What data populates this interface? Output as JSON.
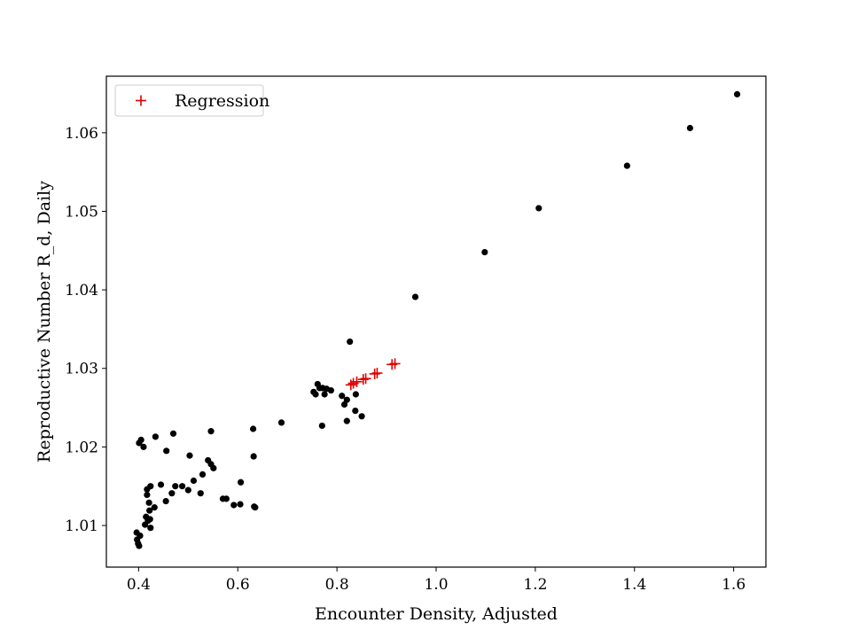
{
  "chart_data": {
    "type": "scatter",
    "xlabel": "Encounter Density, Adjusted",
    "ylabel": "Reproductive Number R_d, Daily",
    "xlim": [
      0.335,
      1.665
    ],
    "ylim": [
      1.0047,
      1.0672
    ],
    "xticks": [
      0.4,
      0.6,
      0.8,
      1.0,
      1.2,
      1.4,
      1.6
    ],
    "xtick_labels": [
      "0.4",
      "0.6",
      "0.8",
      "1.0",
      "1.2",
      "1.4",
      "1.6"
    ],
    "yticks": [
      1.01,
      1.02,
      1.03,
      1.04,
      1.05,
      1.06
    ],
    "ytick_labels": [
      "1.01",
      "1.02",
      "1.03",
      "1.04",
      "1.05",
      "1.06"
    ],
    "grid": false,
    "legend_position": "upper-left",
    "series": [
      {
        "color": "#000000",
        "marker": "circle",
        "points": [
          [
            0.396,
            1.0091
          ],
          [
            0.397,
            1.0082
          ],
          [
            0.399,
            1.0077
          ],
          [
            0.401,
            1.0074
          ],
          [
            0.403,
            1.0087
          ],
          [
            0.401,
            1.0205
          ],
          [
            0.405,
            1.0209
          ],
          [
            0.41,
            1.02
          ],
          [
            0.413,
            1.0101
          ],
          [
            0.415,
            1.0111
          ],
          [
            0.417,
            1.0139
          ],
          [
            0.417,
            1.0146
          ],
          [
            0.419,
            1.0106
          ],
          [
            0.421,
            1.0129
          ],
          [
            0.422,
            1.0119
          ],
          [
            0.423,
            1.0108
          ],
          [
            0.424,
            1.0097
          ],
          [
            0.424,
            1.015
          ],
          [
            0.432,
            1.0123
          ],
          [
            0.434,
            1.0213
          ],
          [
            0.445,
            1.0152
          ],
          [
            0.455,
            1.0131
          ],
          [
            0.456,
            1.0195
          ],
          [
            0.467,
            1.0141
          ],
          [
            0.47,
            1.0217
          ],
          [
            0.474,
            1.015
          ],
          [
            0.488,
            1.015
          ],
          [
            0.5,
            1.0145
          ],
          [
            0.503,
            1.0189
          ],
          [
            0.511,
            1.0157
          ],
          [
            0.525,
            1.0141
          ],
          [
            0.529,
            1.0165
          ],
          [
            0.54,
            1.0183
          ],
          [
            0.546,
            1.0178
          ],
          [
            0.546,
            1.022
          ],
          [
            0.551,
            1.0173
          ],
          [
            0.57,
            1.0134
          ],
          [
            0.577,
            1.0134
          ],
          [
            0.592,
            1.0126
          ],
          [
            0.605,
            1.0127
          ],
          [
            0.606,
            1.0155
          ],
          [
            0.631,
            1.0223
          ],
          [
            0.632,
            1.0188
          ],
          [
            0.633,
            1.0124
          ],
          [
            0.635,
            1.0123
          ],
          [
            0.688,
            1.0231
          ],
          [
            0.753,
            1.027
          ],
          [
            0.757,
            1.0267
          ],
          [
            0.761,
            1.028
          ],
          [
            0.765,
            1.0275
          ],
          [
            0.77,
            1.0227
          ],
          [
            0.771,
            1.0275
          ],
          [
            0.775,
            1.0267
          ],
          [
            0.779,
            1.0274
          ],
          [
            0.788,
            1.0272
          ],
          [
            0.81,
            1.0265
          ],
          [
            0.815,
            1.0254
          ],
          [
            0.82,
            1.0233
          ],
          [
            0.82,
            1.026
          ],
          [
            0.826,
            1.0334
          ],
          [
            0.837,
            1.0246
          ],
          [
            0.838,
            1.0267
          ],
          [
            0.85,
            1.0239
          ],
          [
            0.958,
            1.0391
          ],
          [
            1.098,
            1.0448
          ],
          [
            1.207,
            1.0504
          ],
          [
            1.385,
            1.0558
          ],
          [
            1.512,
            1.0606
          ],
          [
            1.607,
            1.0649
          ]
        ]
      },
      {
        "name": "Regression",
        "color": "#e00000",
        "marker": "plus",
        "points": [
          [
            0.828,
            1.0279
          ],
          [
            0.833,
            1.0281
          ],
          [
            0.84,
            1.0283
          ],
          [
            0.853,
            1.0286
          ],
          [
            0.858,
            1.0287
          ],
          [
            0.876,
            1.0293
          ],
          [
            0.881,
            1.0294
          ],
          [
            0.911,
            1.0305
          ],
          [
            0.917,
            1.0306
          ]
        ]
      }
    ]
  }
}
